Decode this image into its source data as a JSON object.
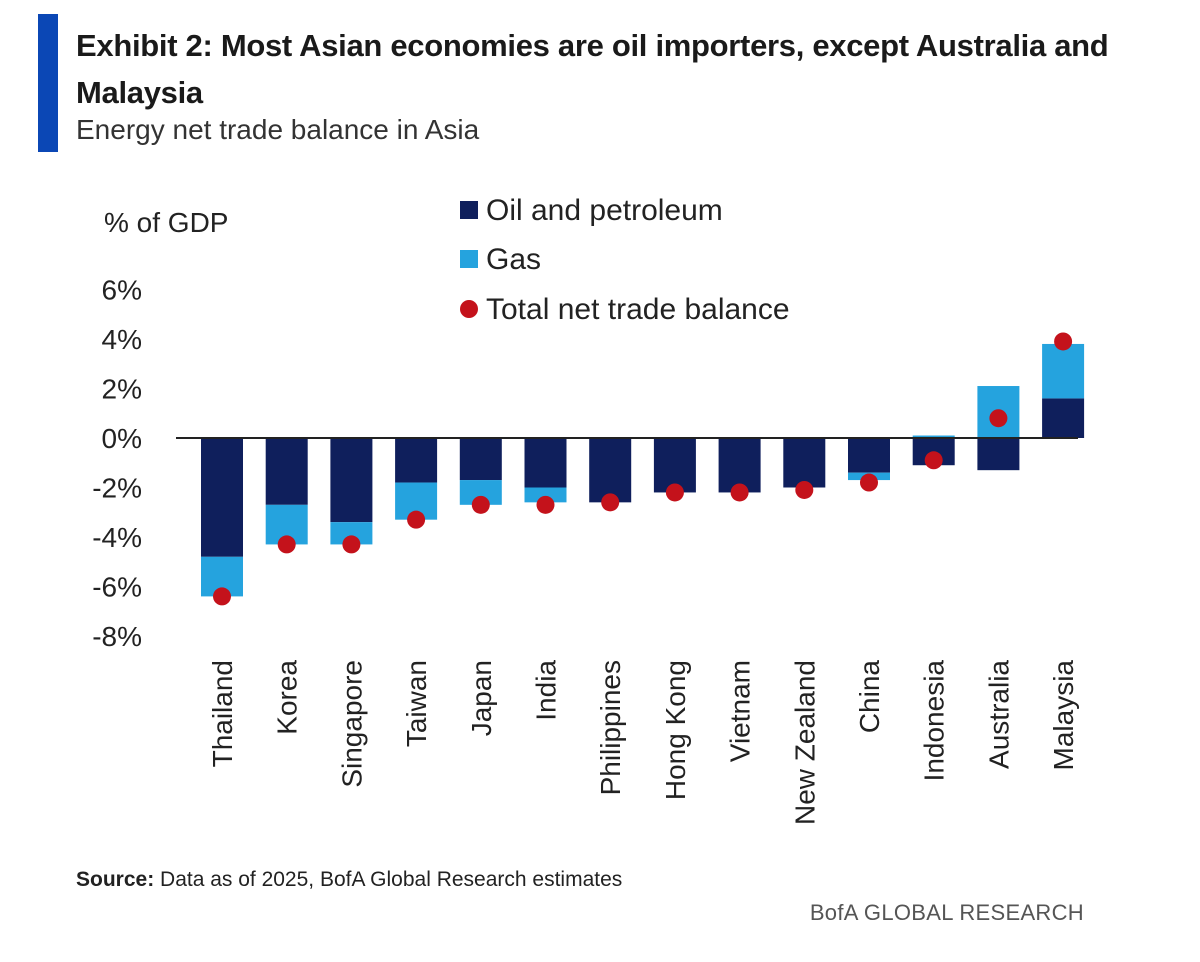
{
  "header": {
    "title": "Exhibit 2: Most Asian economies are oil importers, except Australia and Malaysia",
    "subtitle": "Energy net trade balance in Asia"
  },
  "footer": {
    "source_label": "Source:",
    "source_text": " Data as of 2025, BofA Global Research estimates",
    "brand": "BofA GLOBAL RESEARCH"
  },
  "colors": {
    "accent": "#0b47b5",
    "oil": "#0f1f5c",
    "gas": "#25a3de",
    "total": "#c4121b",
    "axis": "#222222"
  },
  "chart_data": {
    "type": "bar",
    "stacked": true,
    "ylabel": "% of GDP",
    "ylim": [
      -8,
      6
    ],
    "yticks": [
      6,
      4,
      2,
      0,
      -2,
      -4,
      -6,
      -8
    ],
    "ytick_labels": [
      "6%",
      "4%",
      "2%",
      "0%",
      "-2%",
      "-4%",
      "-6%",
      "-8%"
    ],
    "legend_position": "top-center",
    "categories": [
      "Thailand",
      "Korea",
      "Singapore",
      "Taiwan",
      "Japan",
      "India",
      "Philippines",
      "Hong Kong",
      "Vietnam",
      "New Zealand",
      "China",
      "Indonesia",
      "Australia",
      "Malaysia"
    ],
    "series": [
      {
        "name": "Oil and petroleum",
        "kind": "bar",
        "values": [
          -4.8,
          -2.7,
          -3.4,
          -1.8,
          -1.7,
          -2.0,
          -2.6,
          -2.2,
          -2.2,
          -2.0,
          -1.4,
          -1.1,
          -1.3,
          1.6
        ]
      },
      {
        "name": "Gas",
        "kind": "bar",
        "values": [
          -1.6,
          -1.6,
          -0.9,
          -1.5,
          -1.0,
          -0.6,
          0.0,
          0.0,
          0.0,
          0.0,
          -0.3,
          0.1,
          2.1,
          2.2
        ]
      },
      {
        "name": "Total net trade balance",
        "kind": "marker",
        "values": [
          -6.4,
          -4.3,
          -4.3,
          -3.3,
          -2.7,
          -2.7,
          -2.6,
          -2.2,
          -2.2,
          -2.1,
          -1.8,
          -0.9,
          0.8,
          3.9
        ]
      }
    ]
  }
}
